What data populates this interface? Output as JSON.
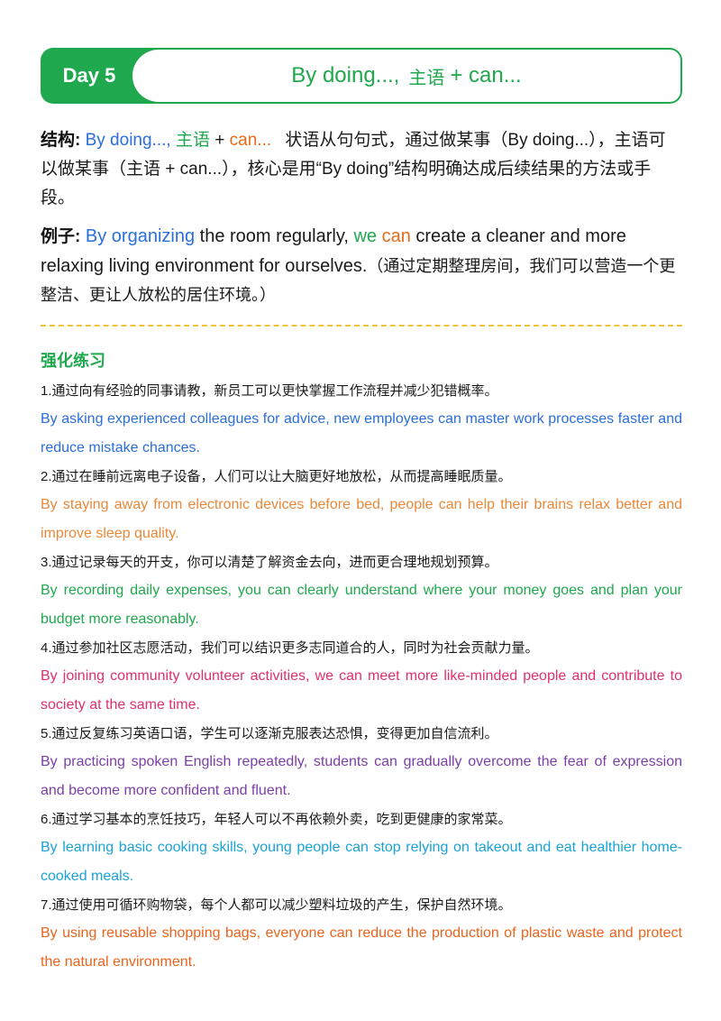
{
  "header": {
    "day_label": "Day 5",
    "title_part1": "By doing...,",
    "title_zh": "主语",
    "title_part2": "+ can..."
  },
  "structure": {
    "lead": "结构:",
    "by_doing": "By doing...,",
    "subject": "主语",
    "plus": " + ",
    "can": "can...",
    "description": "状语从句句式，通过做某事（By doing...），主语可以做某事（主语 + can...），核心是用“By doing”结构明确达成后续结果的方法或手段。"
  },
  "example": {
    "lead": "例子:",
    "by_organizing": "By organizing",
    "text1": " the room regularly,",
    "we": "we",
    "can": "can",
    "text2": " create a cleaner and more relaxing living environment for ourselves.",
    "translation": "（通过定期整理房间，我们可以营造一个更整洁、更让人放松的居住环境。）"
  },
  "practice": {
    "title": "强化练习",
    "items": [
      {
        "zh": "1.通过向有经验的同事请教，新员工可以更快掌握工作流程并减少犯错概率。",
        "en": "By asking experienced colleagues for advice, new employees can master work processes faster and reduce mistake chances.",
        "color": "#2a6fdb"
      },
      {
        "zh": "2.通过在睡前远离电子设备，人们可以让大脑更好地放松，从而提高睡眠质量。",
        "en": "By staying away from electronic devices before bed, people can help their brains relax better and improve sleep quality.",
        "color": "#e8893a"
      },
      {
        "zh": "3.通过记录每天的开支，你可以清楚了解资金去向，进而更合理地规划预算。",
        "en": "By recording daily expenses, you can clearly understand where your money goes and plan your budget more reasonably.",
        "color": "#1fa84d"
      },
      {
        "zh": "4.通过参加社区志愿活动，我们可以结识更多志同道合的人，同时为社会贡献力量。",
        "en": "By joining community volunteer activities, we can meet more like-minded people and contribute to society at the same time.",
        "color": "#e0306a"
      },
      {
        "zh": "5.通过反复练习英语口语，学生可以逐渐克服表达恐惧，变得更加自信流利。",
        "en": "By practicing spoken English repeatedly, students can gradually overcome the fear of expression and become more confident and fluent.",
        "color": "#7a3fa8"
      },
      {
        "zh": "6.通过学习基本的烹饪技巧，年轻人可以不再依赖外卖，吃到更健康的家常菜。",
        "en": "By learning basic cooking skills, young people can stop relying on takeout and eat healthier home-cooked meals.",
        "color": "#1aa3d6"
      },
      {
        "zh": "7.通过使用可循环购物袋，每个人都可以减少塑料垃圾的产生，保护自然环境。",
        "en": "By using reusable shopping bags, everyone can reduce the production of plastic waste and protect the natural environment.",
        "color": "#e8641c"
      }
    ]
  }
}
